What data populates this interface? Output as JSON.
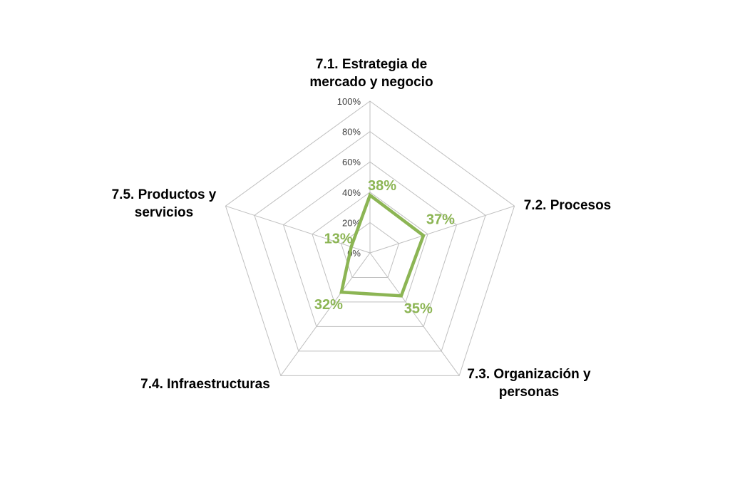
{
  "chart_data": {
    "type": "radar",
    "categories": [
      [
        "7.1. Estrategia de",
        "mercado y negocio"
      ],
      [
        "7.2. Procesos"
      ],
      [
        "7.3. Organización y",
        "personas"
      ],
      [
        "7.4. Infraestructuras"
      ],
      [
        "7.5. Productos y",
        "servicios"
      ]
    ],
    "series": [
      {
        "values": [
          0.38,
          0.37,
          0.35,
          0.32,
          0.13
        ],
        "labels": [
          "38%",
          "37%",
          "35%",
          "32%",
          "13%"
        ]
      }
    ],
    "ticks": [
      "0%",
      "20%",
      "40%",
      "60%",
      "80%",
      "100%"
    ],
    "rlim": [
      0,
      1
    ],
    "grid": true,
    "legend": "none"
  },
  "colors": {
    "series": "#8CB554",
    "grid": "#BFBFBF",
    "label": "#000000"
  }
}
